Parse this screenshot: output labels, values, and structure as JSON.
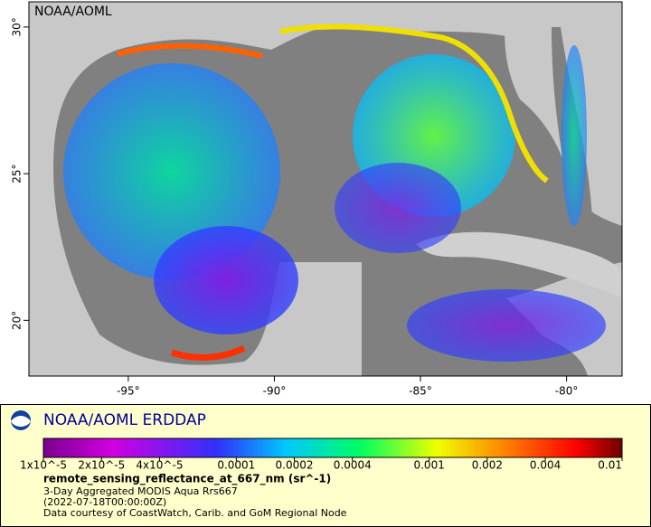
{
  "map": {
    "watermark": "NOAA/AOML",
    "xlim": [
      -98.4,
      -78.1
    ],
    "ylim": [
      18.1,
      30.86
    ],
    "xticks": [
      {
        "value": -95,
        "label": "-95°"
      },
      {
        "value": -90,
        "label": "-90°"
      },
      {
        "value": -85,
        "label": "-85°"
      },
      {
        "value": -80,
        "label": "-80°"
      }
    ],
    "yticks": [
      {
        "value": 30,
        "label": "30°"
      },
      {
        "value": 25,
        "label": "25°"
      },
      {
        "value": 20,
        "label": "20°"
      }
    ]
  },
  "legend": {
    "title": "NOAA/AOML ERDDAP",
    "colorbar": {
      "log": true,
      "lim": [
        1e-05,
        0.01
      ],
      "ticks": [
        {
          "value": 1e-05,
          "label": "1x10^-5"
        },
        {
          "value": 2e-05,
          "label": "2x10^-5"
        },
        {
          "value": 4e-05,
          "label": "4x10^-5"
        },
        0.0001,
        0.0002,
        0.0004,
        0.001,
        0.002,
        0.004,
        0.01
      ]
    },
    "variable": "remote_sensing_reflectance_at_667_nm (sr^-1)",
    "lines": [
      "3-Day Aggregated MODIS Aqua Rrs667",
      "(2022-07-18T00:00:00Z)",
      "Data courtesy of CoastWatch, Carib. and GoM Regional Node"
    ]
  }
}
